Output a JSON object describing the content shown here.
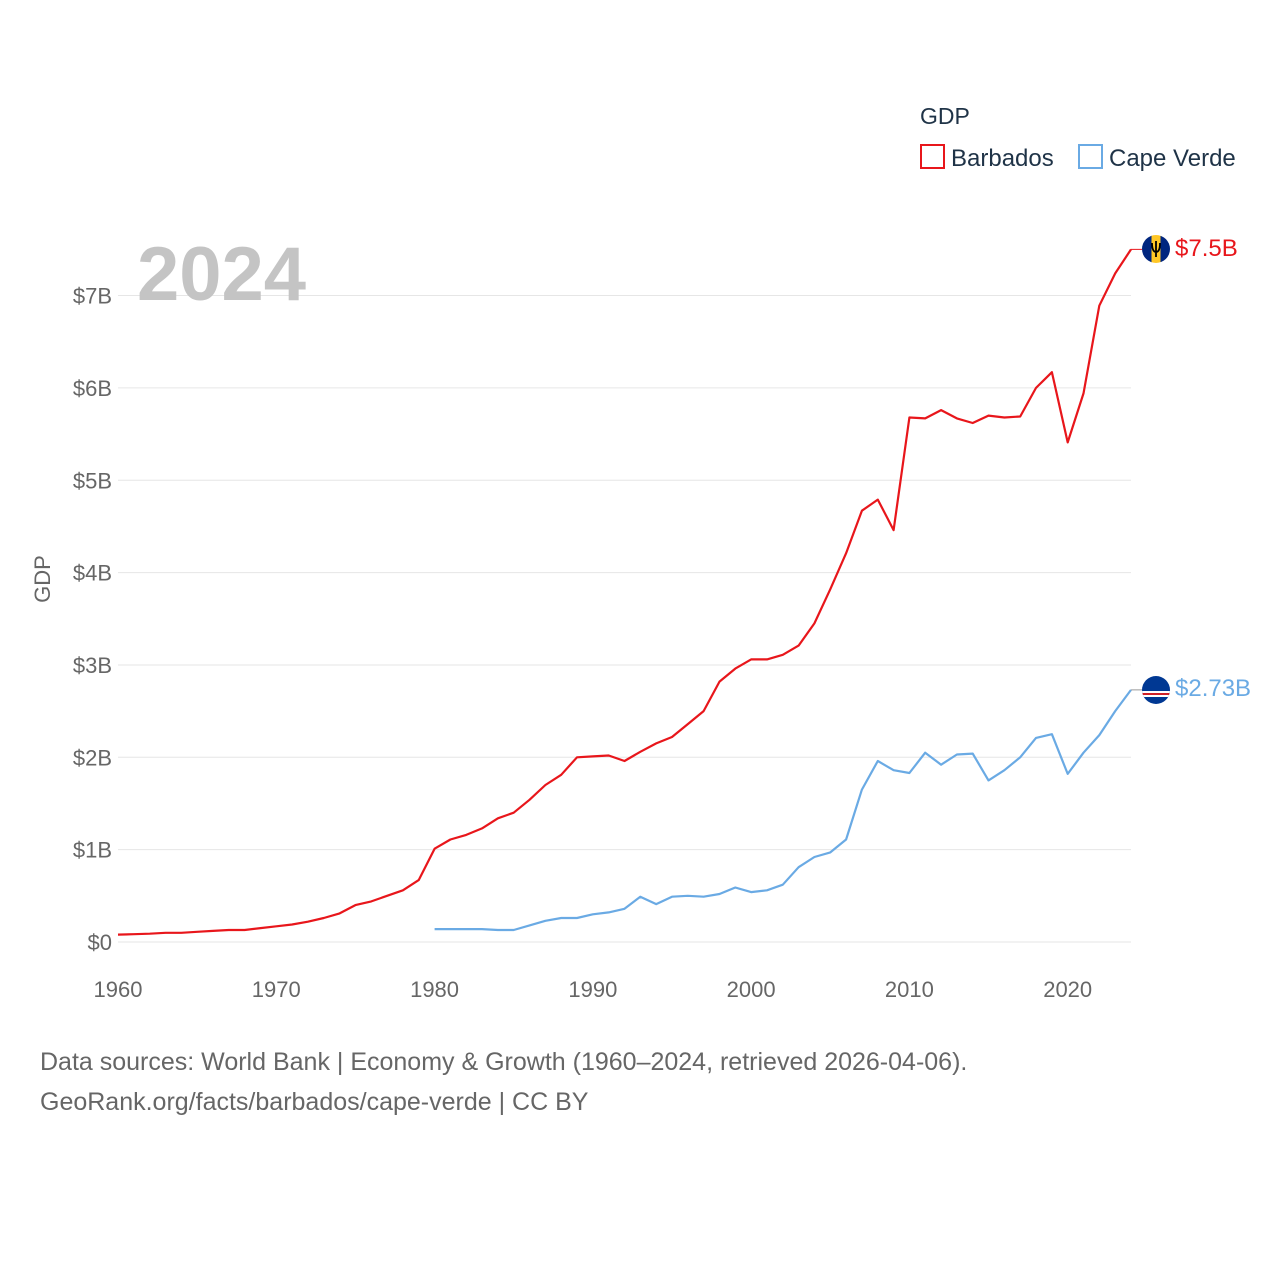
{
  "legend": {
    "title": "GDP"
  },
  "watermark_year": "2024",
  "colors": {
    "barbados": "#e8161b",
    "cape_verde": "#6aaae4",
    "grid": "#e6e6e6",
    "text": "#666666"
  },
  "chart_data": {
    "type": "line",
    "title": "",
    "ylabel": "GDP",
    "xlabel": "",
    "xlim": [
      1960,
      2024
    ],
    "ylim": [
      0,
      7.5
    ],
    "x_ticks": [
      1960,
      1970,
      1980,
      1990,
      2000,
      2010,
      2020
    ],
    "x_tick_labels": [
      "1960",
      "1970",
      "1980",
      "1990",
      "2000",
      "2010",
      "2020"
    ],
    "y_ticks": [
      0,
      1,
      2,
      3,
      4,
      5,
      6,
      7
    ],
    "y_tick_labels": [
      "$0",
      "$1B",
      "$2B",
      "$3B",
      "$4B",
      "$5B",
      "$6B",
      "$7B"
    ],
    "units": "billion USD",
    "series": [
      {
        "name": "Barbados",
        "color": "#e8161b",
        "end_label": "$7.5B",
        "flag_icon": "barbados-flag-icon",
        "x": [
          1960,
          1961,
          1962,
          1963,
          1964,
          1965,
          1966,
          1967,
          1968,
          1969,
          1970,
          1971,
          1972,
          1973,
          1974,
          1975,
          1976,
          1977,
          1978,
          1979,
          1980,
          1981,
          1982,
          1983,
          1984,
          1985,
          1986,
          1987,
          1988,
          1989,
          1990,
          1991,
          1992,
          1993,
          1994,
          1995,
          1996,
          1997,
          1998,
          1999,
          2000,
          2001,
          2002,
          2003,
          2004,
          2005,
          2006,
          2007,
          2008,
          2009,
          2010,
          2011,
          2012,
          2013,
          2014,
          2015,
          2016,
          2017,
          2018,
          2019,
          2020,
          2021,
          2022,
          2023,
          2024
        ],
        "values": [
          0.08,
          0.085,
          0.09,
          0.1,
          0.1,
          0.11,
          0.12,
          0.13,
          0.13,
          0.15,
          0.17,
          0.19,
          0.22,
          0.26,
          0.31,
          0.4,
          0.44,
          0.5,
          0.56,
          0.67,
          1.01,
          1.11,
          1.16,
          1.23,
          1.34,
          1.4,
          1.54,
          1.7,
          1.81,
          2.0,
          2.01,
          2.02,
          1.96,
          2.06,
          2.15,
          2.22,
          2.36,
          2.5,
          2.82,
          2.96,
          3.06,
          3.06,
          3.11,
          3.21,
          3.45,
          3.82,
          4.21,
          4.67,
          4.79,
          4.46,
          5.68,
          5.67,
          5.76,
          5.67,
          5.62,
          5.7,
          5.68,
          5.69,
          6.0,
          6.17,
          5.41,
          5.94,
          6.89,
          7.24,
          7.5
        ]
      },
      {
        "name": "Cape Verde",
        "color": "#6aaae4",
        "end_label": "$2.73B",
        "flag_icon": "cape-verde-flag-icon",
        "x": [
          1980,
          1981,
          1982,
          1983,
          1984,
          1985,
          1986,
          1987,
          1988,
          1989,
          1990,
          1991,
          1992,
          1993,
          1994,
          1995,
          1996,
          1997,
          1998,
          1999,
          2000,
          2001,
          2002,
          2003,
          2004,
          2005,
          2006,
          2007,
          2008,
          2009,
          2010,
          2011,
          2012,
          2013,
          2014,
          2015,
          2016,
          2017,
          2018,
          2019,
          2020,
          2021,
          2022,
          2023,
          2024
        ],
        "values": [
          0.14,
          0.14,
          0.14,
          0.14,
          0.13,
          0.13,
          0.18,
          0.23,
          0.26,
          0.26,
          0.3,
          0.32,
          0.36,
          0.49,
          0.41,
          0.49,
          0.5,
          0.49,
          0.52,
          0.59,
          0.54,
          0.56,
          0.62,
          0.81,
          0.92,
          0.97,
          1.11,
          1.65,
          1.96,
          1.86,
          1.83,
          2.05,
          1.92,
          2.03,
          2.04,
          1.75,
          1.86,
          2.0,
          2.21,
          2.25,
          1.82,
          2.05,
          2.24,
          2.5,
          2.73
        ]
      }
    ]
  },
  "footer": {
    "line1": "Data sources: World Bank | Economy & Growth (1960–2024, retrieved 2026-04-06).",
    "line2": "GeoRank.org/facts/barbados/cape-verde | CC BY"
  }
}
